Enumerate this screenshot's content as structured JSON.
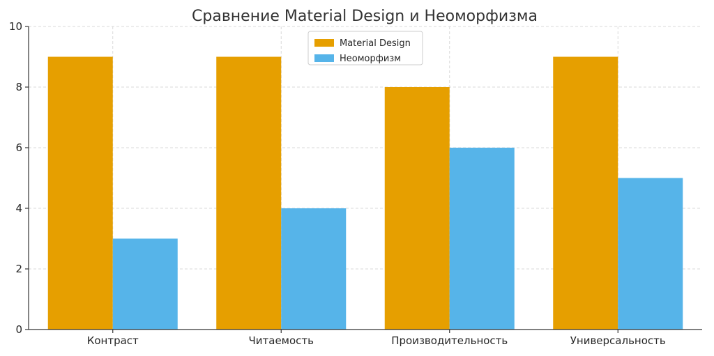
{
  "chart_data": {
    "type": "bar",
    "title": "Сравнение Material Design и Неоморфизма",
    "xlabel": "",
    "ylabel": "",
    "categories": [
      "Контраст",
      "Читаемость",
      "Производительность",
      "Универсальность"
    ],
    "series": [
      {
        "name": "Material Design",
        "color": "#E69F00",
        "values": [
          9,
          9,
          8,
          9
        ]
      },
      {
        "name": "Неоморфизм",
        "color": "#56B4E9",
        "values": [
          3,
          4,
          6,
          5
        ]
      }
    ],
    "ylim": [
      0,
      10
    ],
    "yticks": [
      0,
      2,
      4,
      6,
      8,
      10
    ],
    "grid": true,
    "legend_position": "top-center"
  }
}
